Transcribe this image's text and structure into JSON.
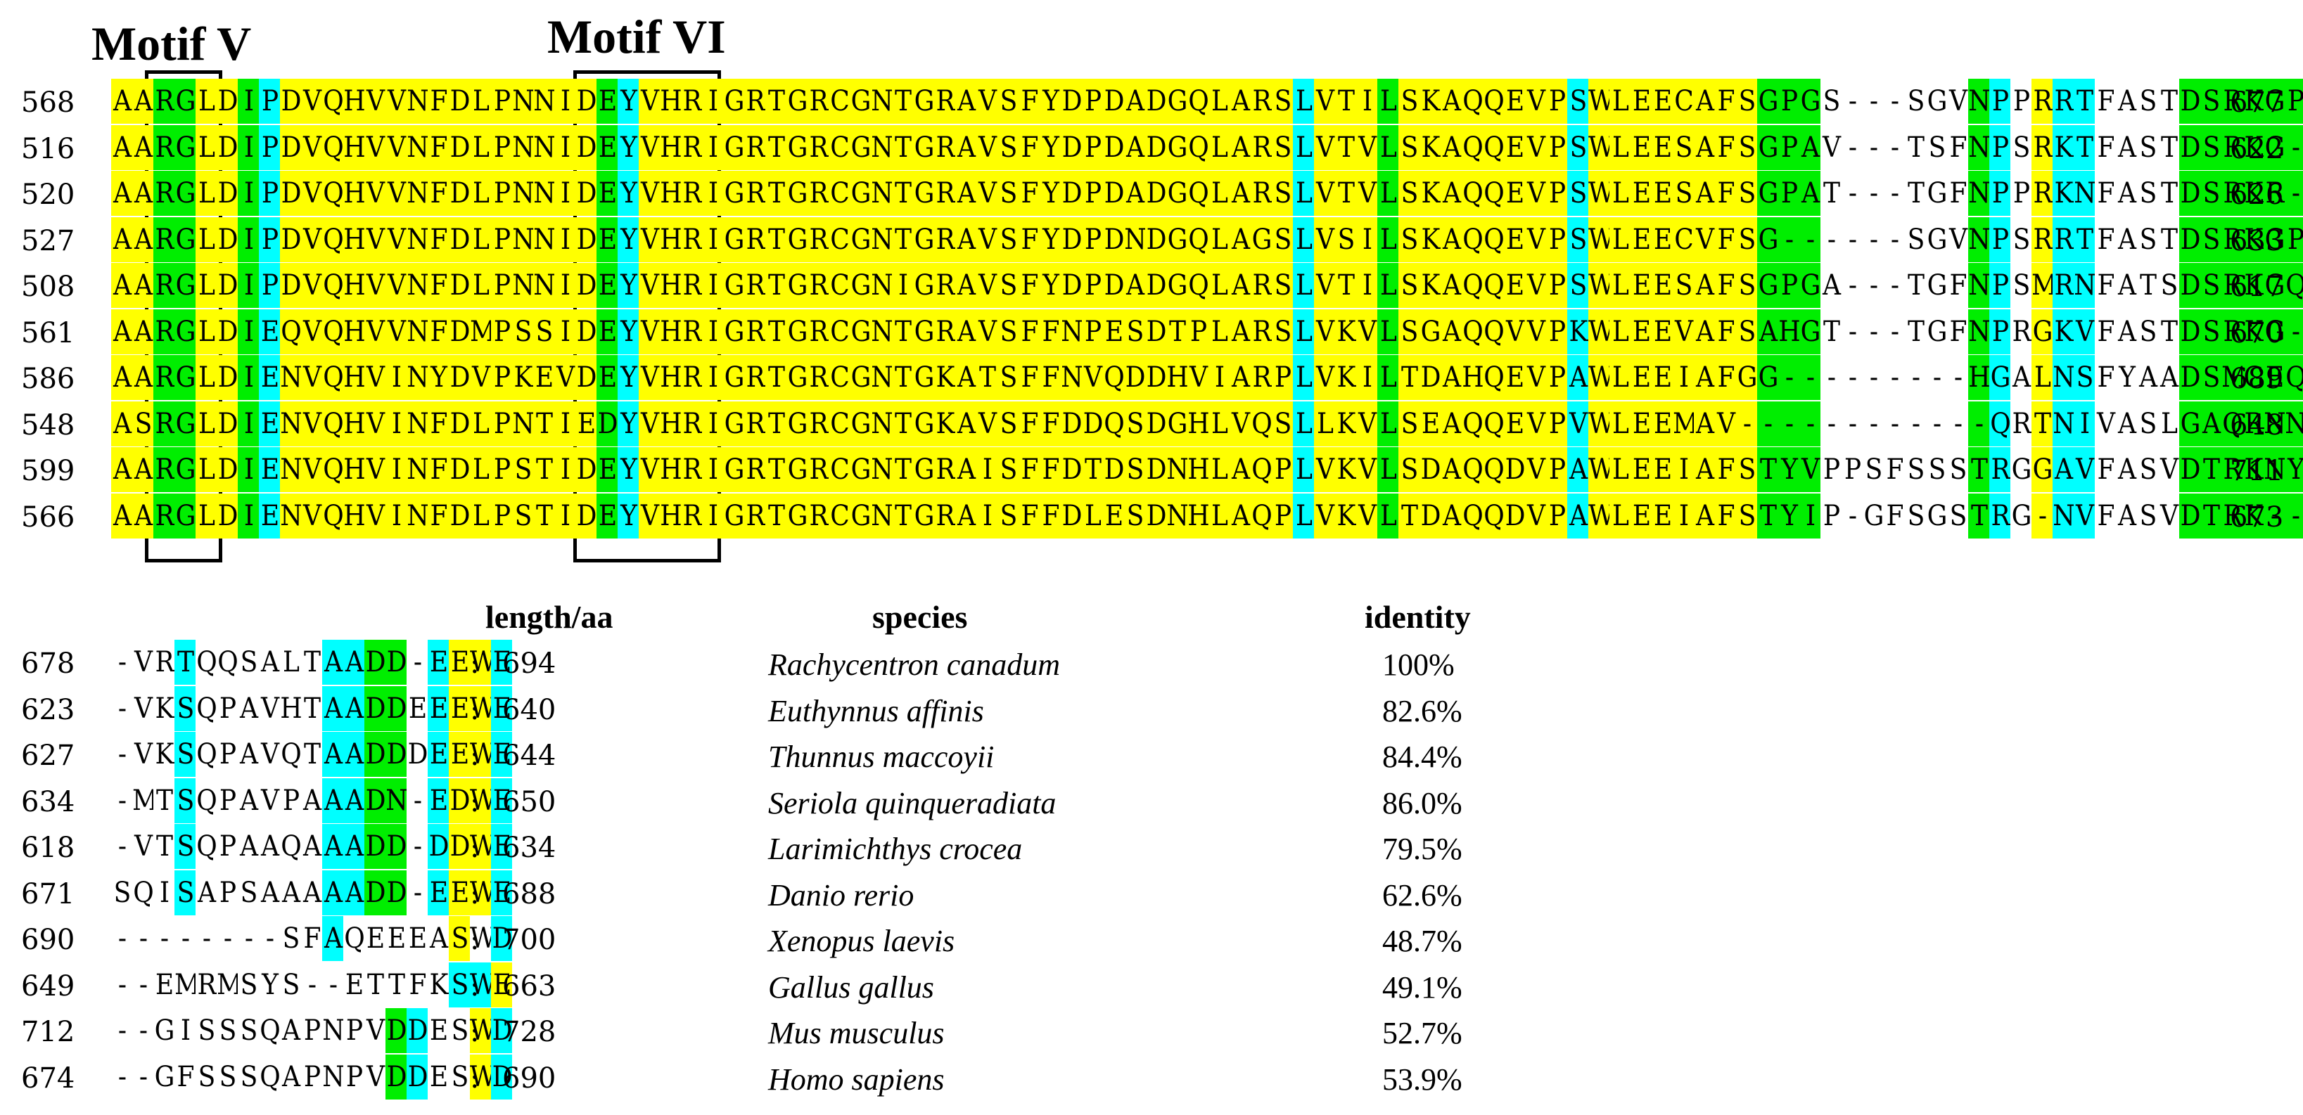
{
  "motifs": [
    {
      "label": "Motif V"
    },
    {
      "label": "Motif VI"
    }
  ],
  "block1": {
    "rows": [
      {
        "start": "568",
        "end": "677",
        "seq": "AARGLDIPDVQHVVNFDLPNNIDEYVHRIGRTGRCGNTGRAVSFYDPDADGQLARSLVTILSKAQQEVPSWLEECAFSGPGS---SGVNPPRRTFASTDSRKGPHGGSFQDSI---",
        "hl": "yyggyygcyyyyyyyyyyyyyyygcyyyyyyyyyyyyyyyyyyyyyyyyyyyyyyycyyygyyyyyyyycyyyyyyyygggwwwwwwwgcwyccwwwwgggggggcwcccccgww"
      },
      {
        "start": "516",
        "end": "622",
        "seq": "AARGLDIPDVQHVVNFDLPNNIDEYVHRIGRTGRCGNTGRAVSFYDPDADGQLARSLVTVLSKAQQEVPSWLEESAFSGPAV---TSFNPSRKTFASTDSRKG---GSFQDNS---",
        "hl": "yyggyygcyyyyyyyyyyyyyyygcyyyyyyyyyyyyyyyyyyyyyyyyyyyyyyycyyygyyyyyyyycyyyyyyyygggwwwwwwwgcwyccwwwwgggggggcwcccccgww"
      },
      {
        "start": "520",
        "end": "626",
        "seq": "AARGLDIPDVQHVVNFDLPNNIDEYVHRIGRTGRCGNTGRAVSFYDPDADGQLARSLVTVLSKAQQEVPSWLEESAFSGPAT---TGFNPPRKNFASTDSRKR---GSFQDNS---",
        "hl": "yyggyygcyyyyyyyyyyyyyyygcyyyyyyyyyyyyyyyyyyyyyyyyyyyyyyycyyygyyyyyyyycyyyyyyyygggwwwwwwwgcwyccwwwwgggggggcwcccccgww"
      },
      {
        "start": "527",
        "end": "633",
        "seq": "AARGLDIPDVQHVVNFDLPNNIDEYVHRIGRTGRCGNTGRAVSFYDPDNDGQLAGSLVSILSKAQQEVPSWLEECVFSG------SGVNPSRRTFASTDSRKGPQGSSFQDSS---",
        "hl": "yyggyygcyyyyyyyyyyyyyyygcyyyyyyyyyyyyyyyyyyyyyyyyyyyyyyycyyygyyyyyyyycyyyyyyyygggwwwwwwwgcwyccwwwwgggggggcwcccccgww"
      },
      {
        "start": "508",
        "end": "617",
        "seq": "AARGLDIPDVQHVVNFDLPNNIDEYVHRIGRTGRCGNIGRAVSFYDPDADGQLARSLVTILSKAQQEVPSWLEESAFSGPGA---TGFNPSMRNFATSDSRKGQHGGSFQDNG---",
        "hl": "yyggyygcyyyyyyyyyyyyyyygcyyyyyyyyyyyyyyyyyyyyyyyyyyyyyyycyyygyyyyyyyycyyyyyyyygggwwwwwwwgcwyccwwwwgggggggcwcccccgww"
      },
      {
        "start": "561",
        "end": "670",
        "seq": "AARGLDIEQVQHVVNFDMPSSIDEYVHRIGRTGRCGNTGRAVSFFNPESDTPLARSLVKVLSGAQQVVPKWLEEVAFSAHGT---TGFNPRGKVFASTDSRKG---GSFKSDEPPP",
        "hl": "yyggyygcyyyyyyyyyyyyyyygcyyyyyyyyyyyyyyyyyyyyyyyyyyyyyyycyyygyyyyyyyycyyyyyyyygggwwwwwwwgcwyccwwwwgggggggcwcccccgww"
      },
      {
        "start": "586",
        "end": "689",
        "seq": "AARGLDIENVQHVINYDVPKEVDEYVHRIGRTGRCGNTGKATSFFNVQDDHVIARPLVKILTDAHQEVPAWLEEIAFGG---------HGALNSFYAADSMGEQAGGNAVTTP---",
        "hl": "yyggyygcyyyyyyyyyyyyyyygcyyyyyyyyyyyyyyyyyyyyyyyyyyyyyyycyyygyyyyyyyycyyyyyyyygggwwwwwwwgcwyccwwwwgggggggcwcccccgww"
      },
      {
        "start": "548",
        "end": "648",
        "seq": "ASRGLDIENVQHVINFDLPNTIEDYVHRIGRTGRCGNTGKAVSFFDDQSDGHLVQSLLKVLSEAQQEVPVWLEEMAV------------QRTNIVASLGAQRNNAGRGRMNPR---",
        "hl": "yyggyygcyyyyyyyyyyyyyyygcyyyyyyyyyyyyyyyyyyyyyyyyyyyyyyycyyygyyyyyyyycyyyyyyyygggwwwwwwwgcwyccwwwwgggggggcwcccccgww"
      },
      {
        "start": "599",
        "end": "711",
        "seq": "AARGLDIENVQHVINFDLPSTIDEYVHRIGRTGRCGNTGRAISFFDTDSDNHLAQPLVKVLSDAQQDVPAWLEEIAFSTYVPPSFSSSTRGGAVFASVDTRKNYQGKHTLNTA---",
        "hl": "yyggyygcyyyyyyyyyyyyyyygcyyyyyyyyyyyyyyyyyyyyyyyyyyyyyyycyyygyyyyyyyycyyyyyyyygggwwwwwwwgcwyccwwwwgggggggcwcccccgww"
      },
      {
        "start": "566",
        "end": "673",
        "seq": "AARGLDIENVQHVINFDLPSTIDEYVHRIGRTGRCGNTGRAISFFDLESDNHLAQPLVKVLTDAQQDVPAWLEEIAFSTYIP-GFSGSTRG-NVFASVDTRK---GKSTLNTA---",
        "hl": "yyggyygcyyyyyyyyyyyyyyygcyyyyyyyyyyyyyyyyyyyyyyyyyyyyyyycyyygyyyyyyyycyyyyyyyygggwwwwwwwgcwyccwwwwgggggggcwcccccgww"
      }
    ]
  },
  "block2": {
    "headers": {
      "length": "length/aa",
      "species": "species",
      "identity": "identity"
    },
    "rows": [
      {
        "start": "678",
        "seq": "-VRTQQSALTAADD-EEWE",
        "hl": "wwwcwwwwwwccggwcyyc",
        "end": "694",
        "species": "Rachycentron canadum",
        "identity": "100%"
      },
      {
        "start": "623",
        "seq": "-VKSQPAVHTAADDEEEWE",
        "hl": "wwwcwwwwwwccggwcyyc",
        "end": "640",
        "species": "Euthynnus affinis",
        "identity": "82.6%"
      },
      {
        "start": "627",
        "seq": "-VKSQPAVQTAADDDEEWE",
        "hl": "wwwcwwwwwwccggwcyyc",
        "end": "644",
        "species": "Thunnus maccoyii",
        "identity": "84.4%"
      },
      {
        "start": "634",
        "seq": "-MTSQPAVPAAADN-EDWE",
        "hl": "wwwcwwwwwwccggwcyyc",
        "end": "650",
        "species": "Seriola quinqueradiata",
        "identity": "86.0%"
      },
      {
        "start": "618",
        "seq": "-VTSQPAAQAAADD-DDWE",
        "hl": "wwwcwwwwwwccggwcyyc",
        "end": "634",
        "species": "Larimichthys crocea",
        "identity": "79.5%"
      },
      {
        "start": "671",
        "seq": "SQISAPSAAAAADD-EEWE",
        "hl": "wwwcwwwwwwccggwcyyc",
        "end": "688",
        "species": "Danio rerio",
        "identity": "62.6%"
      },
      {
        "start": "690",
        "seq": "--------SFAQEEEASWD",
        "hl": "wwwwwwwwwwcwwwwwywc",
        "end": "700",
        "species": "Xenopus laevis",
        "identity": "48.7%"
      },
      {
        "start": "649",
        "seq": "--EMRMSYS--ETTFKSWE",
        "hl": "wwwwwwwwwwwwwwwwccy",
        "end": "663",
        "species": "Gallus gallus",
        "identity": "49.1%"
      },
      {
        "start": "712",
        "seq": "--GISSSQAPNPVDDESWD",
        "hl": "wwwwwwwwwwwwwgcwwyc",
        "end": "728",
        "species": "Mus musculus",
        "identity": "52.7%"
      },
      {
        "start": "674",
        "seq": "--GFSSSQAPNPVDDESWD",
        "hl": "wwwwwwwwwwwwwgcwwyc",
        "end": "690",
        "species": "Homo sapiens",
        "identity": "53.9%"
      }
    ]
  },
  "colors": {
    "y": "#ffff00",
    "c": "#00ffff",
    "g": "#00ee00"
  }
}
